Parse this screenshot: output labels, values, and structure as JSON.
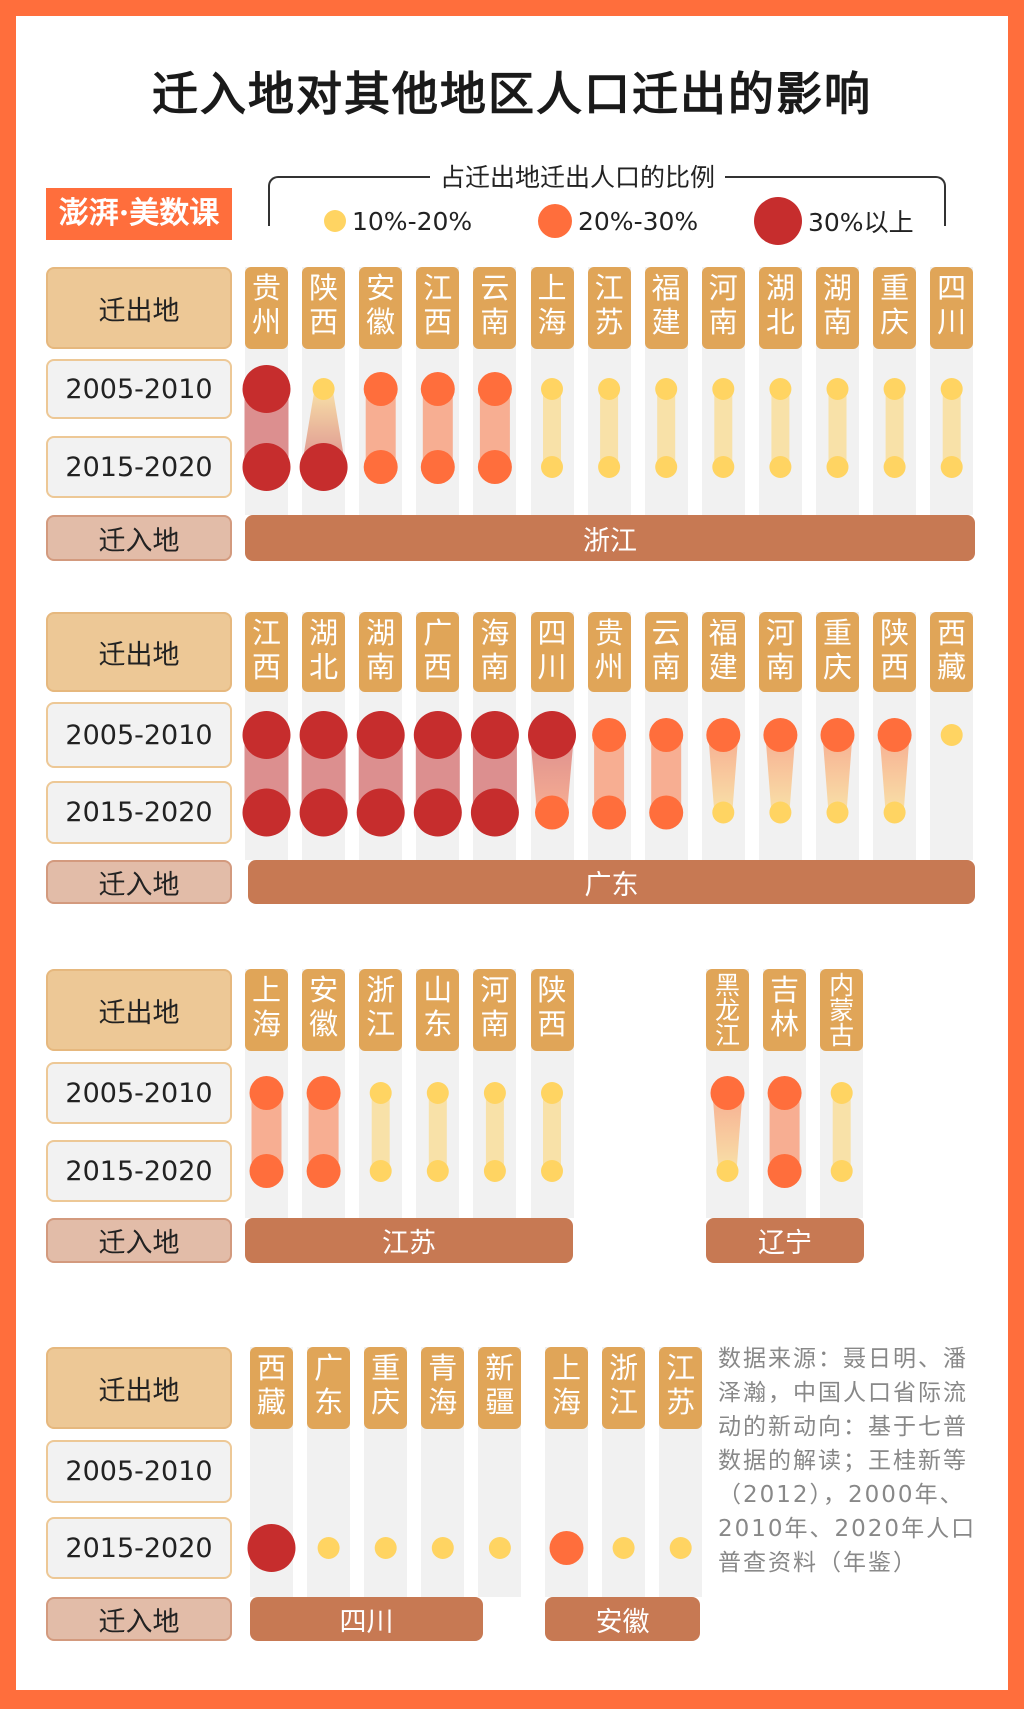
{
  "title": "迁入地对其他地区人口迁出的影响",
  "logo": "澎湃·美数课",
  "colors": {
    "level1": "#ffd462",
    "level2": "#ff6e3c",
    "level3": "#c62d2d",
    "frame": "#ff6e3c"
  },
  "chart_data": {
    "type": "dot-plot",
    "title": "迁入地对其他地区人口迁出的影响",
    "legend": {
      "title": "占迁出地迁出人口的比例",
      "items": [
        {
          "level": 1,
          "label": "10%-20%"
        },
        {
          "level": 2,
          "label": "20%-30%"
        },
        {
          "level": 3,
          "label": "30%以上"
        }
      ]
    },
    "row_labels": {
      "origin": "迁出地",
      "period1": "2005-2010",
      "period2": "2015-2020",
      "destination": "迁入地"
    },
    "groups": [
      {
        "destination": "浙江",
        "origins": [
          {
            "name": "贵州",
            "p1": 3,
            "p2": 3
          },
          {
            "name": "陕西",
            "p1": 1,
            "p2": 3
          },
          {
            "name": "安徽",
            "p1": 2,
            "p2": 2
          },
          {
            "name": "江西",
            "p1": 2,
            "p2": 2
          },
          {
            "name": "云南",
            "p1": 2,
            "p2": 2
          },
          {
            "name": "上海",
            "p1": 1,
            "p2": 1
          },
          {
            "name": "江苏",
            "p1": 1,
            "p2": 1
          },
          {
            "name": "福建",
            "p1": 1,
            "p2": 1
          },
          {
            "name": "河南",
            "p1": 1,
            "p2": 1
          },
          {
            "name": "湖北",
            "p1": 1,
            "p2": 1
          },
          {
            "name": "湖南",
            "p1": 1,
            "p2": 1
          },
          {
            "name": "重庆",
            "p1": 1,
            "p2": 1
          },
          {
            "name": "四川",
            "p1": 1,
            "p2": 1
          }
        ]
      },
      {
        "destination": "广东",
        "origins": [
          {
            "name": "江西",
            "p1": 3,
            "p2": 3
          },
          {
            "name": "湖北",
            "p1": 3,
            "p2": 3
          },
          {
            "name": "湖南",
            "p1": 3,
            "p2": 3
          },
          {
            "name": "广西",
            "p1": 3,
            "p2": 3
          },
          {
            "name": "海南",
            "p1": 3,
            "p2": 3
          },
          {
            "name": "四川",
            "p1": 3,
            "p2": 2
          },
          {
            "name": "贵州",
            "p1": 2,
            "p2": 2
          },
          {
            "name": "云南",
            "p1": 2,
            "p2": 2
          },
          {
            "name": "福建",
            "p1": 2,
            "p2": 1
          },
          {
            "name": "河南",
            "p1": 2,
            "p2": 1
          },
          {
            "name": "重庆",
            "p1": 2,
            "p2": 1
          },
          {
            "name": "陕西",
            "p1": 2,
            "p2": 1
          },
          {
            "name": "西藏",
            "p1": 1,
            "p2": null
          }
        ]
      },
      {
        "destination": "江苏",
        "origins": [
          {
            "name": "上海",
            "p1": 2,
            "p2": 2
          },
          {
            "name": "安徽",
            "p1": 2,
            "p2": 2
          },
          {
            "name": "浙江",
            "p1": 1,
            "p2": 1
          },
          {
            "name": "山东",
            "p1": 1,
            "p2": 1
          },
          {
            "name": "河南",
            "p1": 1,
            "p2": 1
          },
          {
            "name": "陕西",
            "p1": 1,
            "p2": 1
          }
        ]
      },
      {
        "destination": "辽宁",
        "origins": [
          {
            "name": "黑龙江",
            "p1": 2,
            "p2": 1
          },
          {
            "name": "吉林",
            "p1": 2,
            "p2": 2
          },
          {
            "name": "内蒙古",
            "p1": 1,
            "p2": 1
          }
        ]
      },
      {
        "destination": "四川",
        "origins": [
          {
            "name": "西藏",
            "p1": null,
            "p2": 3
          },
          {
            "name": "广东",
            "p1": null,
            "p2": 1
          },
          {
            "name": "重庆",
            "p1": null,
            "p2": 1
          },
          {
            "name": "青海",
            "p1": null,
            "p2": 1
          },
          {
            "name": "新疆",
            "p1": null,
            "p2": 1
          }
        ]
      },
      {
        "destination": "安徽",
        "origins": [
          {
            "name": "上海",
            "p1": null,
            "p2": 2
          },
          {
            "name": "浙江",
            "p1": null,
            "p2": 1
          },
          {
            "name": "江苏",
            "p1": null,
            "p2": 1
          }
        ]
      }
    ]
  },
  "source": "数据来源：聂日明、潘泽瀚，中国人口省际流动的新动向：基于七普数据的解读；王桂新等（2012），2000年、2010年、2020年人口普查资料（年鉴）"
}
